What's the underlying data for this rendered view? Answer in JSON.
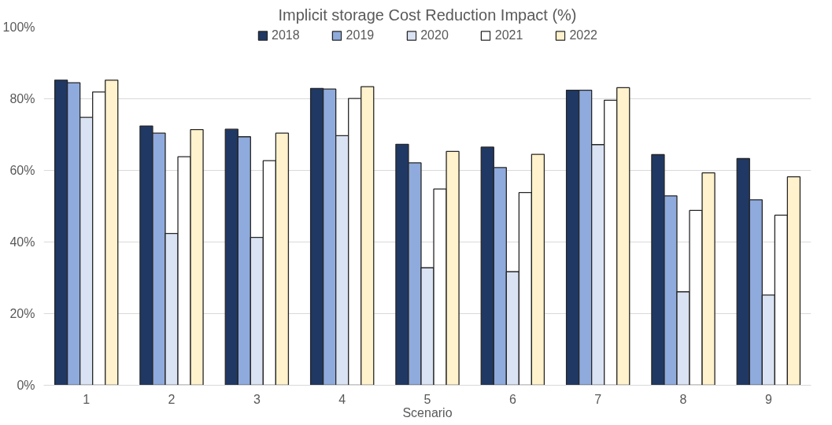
{
  "chart_data": {
    "type": "bar",
    "title": "Implicit storage Cost Reduction Impact (%)",
    "xlabel": "Scenario",
    "categories": [
      "1",
      "2",
      "3",
      "4",
      "5",
      "6",
      "7",
      "8",
      "9"
    ],
    "series": [
      {
        "name": "2018",
        "color": "#203864",
        "values": [
          85.2,
          72.4,
          71.5,
          82.9,
          67.3,
          66.5,
          82.4,
          64.4,
          63.3
        ]
      },
      {
        "name": "2019",
        "color": "#8faadc",
        "values": [
          84.5,
          70.4,
          69.4,
          82.7,
          62.1,
          60.8,
          82.4,
          52.9,
          51.8
        ]
      },
      {
        "name": "2020",
        "color": "#dae3f3",
        "values": [
          74.8,
          42.4,
          41.3,
          69.7,
          32.8,
          31.7,
          67.2,
          26.1,
          25.2
        ]
      },
      {
        "name": "2021",
        "color": "#ffffff",
        "values": [
          81.9,
          63.8,
          62.7,
          80.1,
          54.8,
          53.8,
          79.6,
          48.8,
          47.5
        ]
      },
      {
        "name": "2022",
        "color": "#fff2cc",
        "values": [
          85.2,
          71.4,
          70.4,
          83.4,
          65.3,
          64.5,
          83.1,
          59.3,
          58.2
        ]
      }
    ],
    "ylim": [
      0,
      100
    ],
    "yticks": [
      {
        "value": 0,
        "label": "0%"
      },
      {
        "value": 20,
        "label": "20%"
      },
      {
        "value": 40,
        "label": "40%"
      },
      {
        "value": 60,
        "label": "60%"
      },
      {
        "value": 80,
        "label": "80%"
      },
      {
        "value": 100,
        "label": "100%"
      }
    ],
    "grid": "y",
    "legend": "top"
  }
}
